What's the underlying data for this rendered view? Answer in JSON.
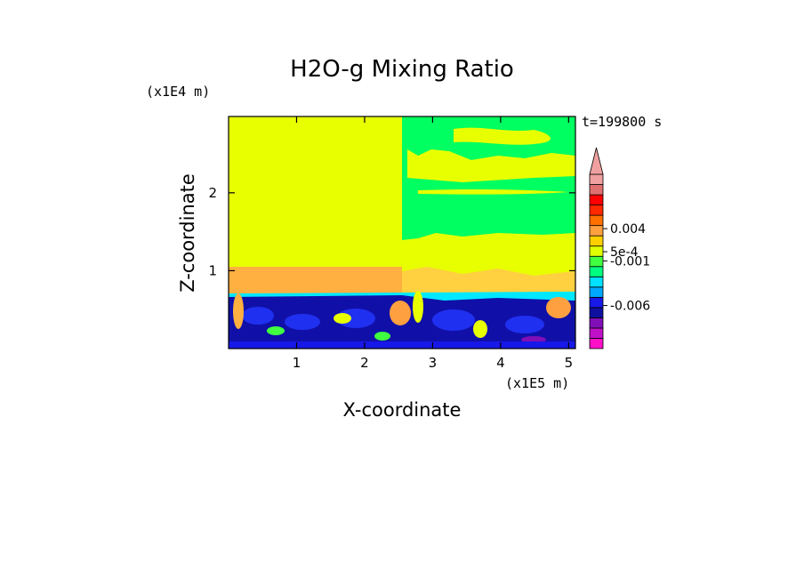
{
  "chart_data": {
    "type": "heatmap",
    "title": "H2O-g Mixing Ratio",
    "xlabel": "X-coordinate",
    "ylabel": "Z-coordinate",
    "x_scale_label": "(x1E5 m)",
    "y_scale_label": "(x1E4 m)",
    "time_label": "t=199800 s",
    "xlim": [
      0,
      5.1
    ],
    "ylim": [
      0,
      2.98
    ],
    "x_ticks": [
      "1",
      "2",
      "3",
      "4",
      "5"
    ],
    "x_tick_values": [
      1,
      2,
      3,
      4,
      5
    ],
    "y_ticks": [
      "1",
      "2"
    ],
    "y_tick_values": [
      1,
      2
    ],
    "colorbar": {
      "colors": [
        "#ff10c8",
        "#c010c8",
        "#800fb8",
        "#1010a0",
        "#1818e8",
        "#00a8ff",
        "#00e0ff",
        "#00ff80",
        "#40ff40",
        "#e0ff00",
        "#ffd000",
        "#ffa040",
        "#ff7000",
        "#ff2800",
        "#ff0000",
        "#e07070",
        "#f0a0a0"
      ],
      "labels": [
        "0.004",
        "5e-4",
        "-0.001",
        "-0.006"
      ],
      "label_values": [
        0.004,
        0.0005,
        -0.001,
        -0.006
      ],
      "extend_top_arrow": true
    },
    "fields": {
      "background": "#e8ff00",
      "upper_green": "#00ff60",
      "mid_orange": "#ffb040",
      "cyan": "#00e8ff",
      "dark_blue": "#1010a8",
      "blue": "#2030f0"
    }
  }
}
